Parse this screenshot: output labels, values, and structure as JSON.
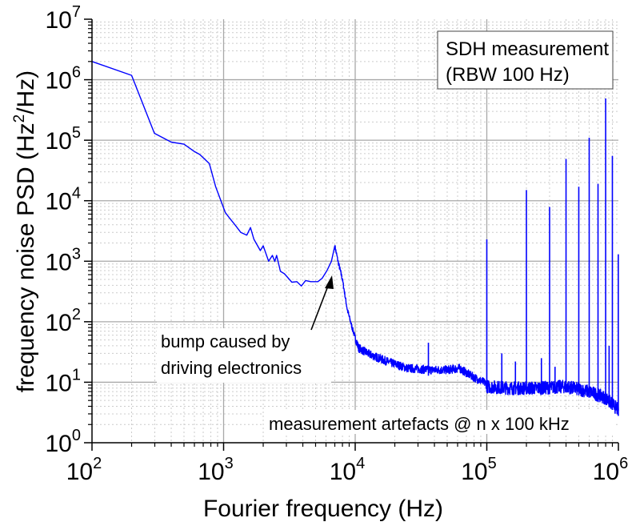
{
  "chart_data": {
    "type": "line",
    "xscale": "log",
    "yscale": "log",
    "xlabel": "Fourier frequency (Hz)",
    "ylabel_parts": [
      "frequency noise PSD (Hz",
      "2",
      "/Hz)"
    ],
    "xlim": [
      100,
      1000000
    ],
    "ylim": [
      1,
      10000000
    ],
    "x_ticks": [
      {
        "base": "10",
        "exp": "2"
      },
      {
        "base": "10",
        "exp": "3"
      },
      {
        "base": "10",
        "exp": "4"
      },
      {
        "base": "10",
        "exp": "5"
      },
      {
        "base": "10",
        "exp": "6"
      }
    ],
    "y_ticks": [
      {
        "base": "10",
        "exp": "0"
      },
      {
        "base": "10",
        "exp": "1"
      },
      {
        "base": "10",
        "exp": "2"
      },
      {
        "base": "10",
        "exp": "3"
      },
      {
        "base": "10",
        "exp": "4"
      },
      {
        "base": "10",
        "exp": "5"
      },
      {
        "base": "10",
        "exp": "6"
      },
      {
        "base": "10",
        "exp": "7"
      }
    ],
    "grid": "major solid, minor dotted",
    "series_color": "#0000ff",
    "series": [
      {
        "name": "SDH measurement",
        "points": [
          [
            100,
            2000000
          ],
          [
            200,
            1180000
          ],
          [
            298,
            130000
          ],
          [
            400,
            93000
          ],
          [
            500,
            86000
          ],
          [
            600,
            65000
          ],
          [
            660,
            58000
          ],
          [
            780,
            41000
          ],
          [
            870,
            17000
          ],
          [
            1030,
            6400
          ],
          [
            1100,
            5300
          ],
          [
            1230,
            3900
          ],
          [
            1350,
            3000
          ],
          [
            1500,
            2700
          ],
          [
            1600,
            3600
          ],
          [
            1700,
            2300
          ],
          [
            1900,
            1500
          ],
          [
            2000,
            1800
          ],
          [
            2200,
            1000
          ],
          [
            2350,
            1250
          ],
          [
            2450,
            990
          ],
          [
            2530,
            1250
          ],
          [
            2700,
            680
          ],
          [
            2900,
            620
          ],
          [
            3300,
            450
          ],
          [
            3600,
            460
          ],
          [
            3900,
            390
          ],
          [
            4200,
            480
          ],
          [
            4600,
            460
          ],
          [
            5200,
            460
          ],
          [
            5600,
            520
          ],
          [
            6100,
            700
          ],
          [
            6600,
            1000
          ],
          [
            7000,
            1800
          ],
          [
            7400,
            1000
          ],
          [
            8000,
            500
          ],
          [
            8700,
            160
          ],
          [
            9500,
            78
          ],
          [
            10600,
            37
          ],
          [
            12800,
            29
          ],
          [
            17500,
            22
          ],
          [
            25000,
            17
          ],
          [
            38000,
            16
          ],
          [
            50000,
            16
          ],
          [
            62000,
            17
          ],
          [
            75000,
            13
          ],
          [
            90000,
            10.5
          ],
          [
            98000,
            9.7
          ],
          [
            100500,
            8.5
          ],
          [
            150000,
            8
          ],
          [
            250000,
            8
          ],
          [
            400000,
            8.5
          ],
          [
            600000,
            7
          ],
          [
            800000,
            5.5
          ],
          [
            1000000,
            3.5
          ]
        ],
        "spikes": [
          [
            36000,
            45
          ],
          [
            100000,
            2300
          ],
          [
            130000,
            30
          ],
          [
            165000,
            22
          ],
          [
            200000,
            15000
          ],
          [
            260000,
            25
          ],
          [
            300000,
            7900
          ],
          [
            330000,
            18
          ],
          [
            400000,
            49000
          ],
          [
            500000,
            17000
          ],
          [
            600000,
            110000
          ],
          [
            700000,
            19000
          ],
          [
            800000,
            490000
          ],
          [
            850000,
            40
          ],
          [
            900000,
            55000
          ],
          [
            1000000,
            1300
          ]
        ]
      }
    ],
    "legend": {
      "lines": [
        "SDH measurement",
        "(RBW 100 Hz)"
      ],
      "placement": "top-right"
    },
    "annotations": {
      "bump": [
        "bump caused by",
        "driving electronics"
      ],
      "bump_target": [
        6800,
        1000
      ],
      "artefacts": "measurement artefacts @ n x 100 kHz"
    }
  }
}
